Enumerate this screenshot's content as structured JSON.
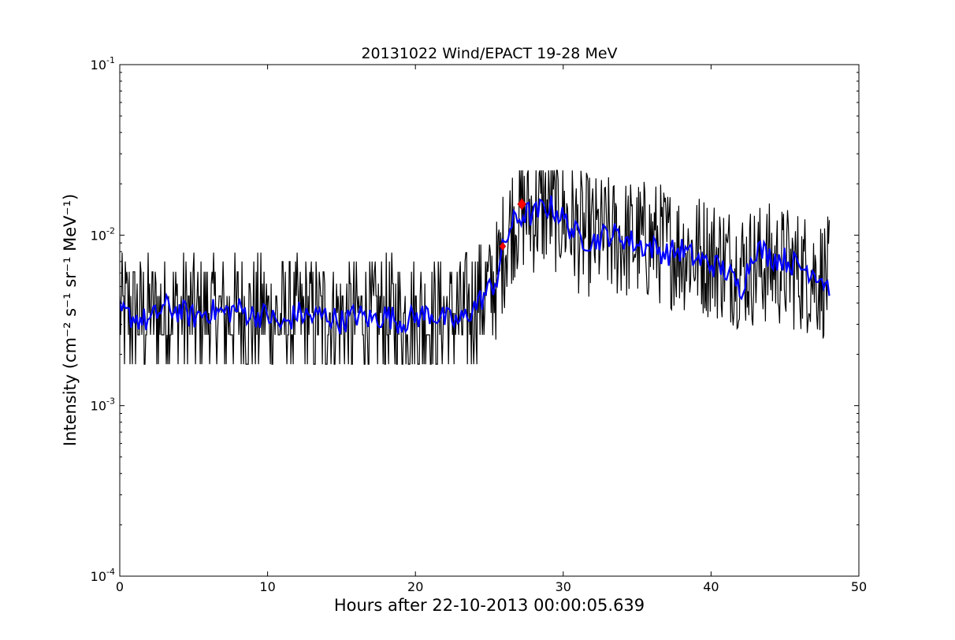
{
  "chart_data": {
    "type": "line",
    "title": "20131022 Wind/EPACT 19-28 MeV",
    "xlabel": "Hours after 22-10-2013 00:00:05.639",
    "ylabel": "Intensity (cm⁻² s⁻¹ sr⁻¹ MeV⁻¹)",
    "xlim": [
      0,
      50
    ],
    "ylim": [
      0.0001,
      0.1
    ],
    "yscale": "log",
    "grid": false,
    "x_ticks": [
      "0",
      "10",
      "20",
      "30",
      "40",
      "50"
    ],
    "y_ticks": [
      {
        "base": "10",
        "exp": "-4",
        "value": 0.0001
      },
      {
        "base": "10",
        "exp": "-3",
        "value": 0.001
      },
      {
        "base": "10",
        "exp": "-2",
        "value": 0.01
      },
      {
        "base": "10",
        "exp": "-1",
        "value": 0.1
      }
    ],
    "series": [
      {
        "color": "#000000",
        "style": "raw-noisy",
        "x": [
          0,
          2,
          4,
          6,
          8,
          10,
          12,
          14,
          16,
          18,
          20,
          22,
          23.5,
          24,
          25,
          25.5,
          26,
          26.5,
          27,
          27.5,
          28,
          29,
          30,
          31,
          32,
          34,
          36,
          38,
          40,
          42,
          44,
          46,
          48
        ],
        "y": [
          0.0035,
          0.0034,
          0.0035,
          0.0034,
          0.0034,
          0.0033,
          0.0033,
          0.0033,
          0.0032,
          0.0033,
          0.0033,
          0.0033,
          0.0034,
          0.0042,
          0.0048,
          0.0055,
          0.0085,
          0.012,
          0.0135,
          0.014,
          0.0135,
          0.0145,
          0.013,
          0.0105,
          0.0098,
          0.0095,
          0.0092,
          0.0082,
          0.0075,
          0.0065,
          0.0068,
          0.0062,
          0.0055
        ]
      },
      {
        "color": "#0000ff",
        "style": "smoothed",
        "x": [
          0,
          1,
          2,
          3,
          4,
          5,
          6,
          7,
          8,
          9,
          10,
          11,
          12,
          13,
          14,
          15,
          16,
          17,
          18,
          19,
          20,
          21,
          22,
          23,
          24,
          25,
          25.5,
          26,
          26.5,
          27,
          27.5,
          28,
          28.5,
          29,
          29.5,
          30,
          31,
          32,
          33,
          34,
          35,
          36,
          37,
          38,
          39,
          40,
          41,
          42,
          43,
          44,
          45,
          46,
          47,
          48
        ],
        "y": [
          0.0035,
          0.0033,
          0.0031,
          0.0038,
          0.0036,
          0.0033,
          0.0036,
          0.0035,
          0.0037,
          0.0034,
          0.0034,
          0.0029,
          0.0035,
          0.0033,
          0.0034,
          0.0031,
          0.0034,
          0.0032,
          0.0034,
          0.0031,
          0.0033,
          0.0035,
          0.0032,
          0.0031,
          0.0038,
          0.0048,
          0.0055,
          0.0088,
          0.0115,
          0.0125,
          0.0135,
          0.013,
          0.0142,
          0.0148,
          0.014,
          0.0125,
          0.0098,
          0.0092,
          0.0102,
          0.0098,
          0.0088,
          0.0085,
          0.0078,
          0.0082,
          0.0072,
          0.0068,
          0.0062,
          0.0048,
          0.0085,
          0.0075,
          0.0072,
          0.0065,
          0.0062,
          0.005
        ]
      }
    ],
    "markers": [
      {
        "x": 25.9,
        "y": 0.0086,
        "color": "#ff0000",
        "shape": "diamond",
        "size": "small"
      },
      {
        "x": 27.2,
        "y": 0.0152,
        "color": "#ff0000",
        "shape": "diamond",
        "size": "large"
      }
    ]
  }
}
